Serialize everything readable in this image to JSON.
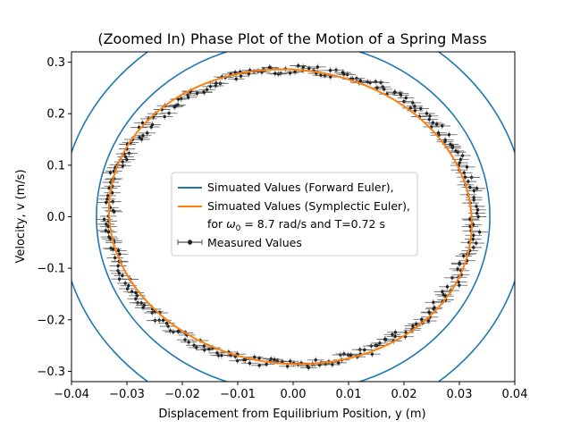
{
  "chart_data": {
    "type": "line",
    "title": "(Zoomed In) Phase Plot of the Motion of a Spring Mass",
    "xlabel": "Displacement from Equilibrium Position, y (m)",
    "ylabel": "Velocity, v (m/s)",
    "xlim": [
      -0.04,
      0.04
    ],
    "ylim": [
      -0.32,
      0.32
    ],
    "xticks": [
      -0.04,
      -0.03,
      -0.02,
      -0.01,
      0.0,
      0.01,
      0.02,
      0.03,
      0.04
    ],
    "xtick_labels": [
      "−0.04",
      "−0.03",
      "−0.02",
      "−0.01",
      "0.00",
      "0.01",
      "0.02",
      "0.03",
      "0.04"
    ],
    "yticks": [
      -0.3,
      -0.2,
      -0.1,
      0.0,
      0.1,
      0.2,
      0.3
    ],
    "ytick_labels": [
      "−0.3",
      "−0.2",
      "−0.1",
      "0.0",
      "0.1",
      "0.2",
      "0.3"
    ],
    "grid": false,
    "legend_placement": "center",
    "legend": [
      {
        "label": "Simuated Values (Forward Euler),",
        "color": "#1f77b4",
        "marker": "line"
      },
      {
        "label": "Simuated Values (Symplectic Euler),",
        "color": "#ff7f0e",
        "marker": "line"
      },
      {
        "label_prefix": "for ",
        "label_symbol": "ω",
        "label_subscript": "0",
        "label_suffix": " = 8.7 rad/s and T=0.72 s",
        "marker": "none"
      },
      {
        "label": "Measured Values",
        "color": "#404040",
        "marker": "errorbar-dot"
      }
    ],
    "series": [
      {
        "name": "Simuated Values (Forward Euler),",
        "color": "#1f77b4",
        "style": "ellipse-spiral",
        "center": [
          0.0,
          0.0
        ],
        "ellipses": [
          {
            "rx": 0.0355,
            "ry": 0.34
          },
          {
            "rx": 0.042,
            "ry": 0.41
          }
        ]
      },
      {
        "name": "Simuated Values (Symplectic Euler),",
        "color": "#ff7f0e",
        "style": "ellipse",
        "center": [
          -0.0005,
          0.0
        ],
        "rx": 0.0327,
        "ry": 0.286,
        "tilt": -0.0015
      },
      {
        "name": "Measured Values",
        "color": "#222222",
        "errorbar_color": "#555555",
        "style": "points-with-xerr",
        "center": [
          -0.0003,
          0.0
        ],
        "rx": 0.033,
        "ry": 0.286,
        "count": 320,
        "x_error": 0.0015,
        "y_error": 0.006
      }
    ]
  }
}
